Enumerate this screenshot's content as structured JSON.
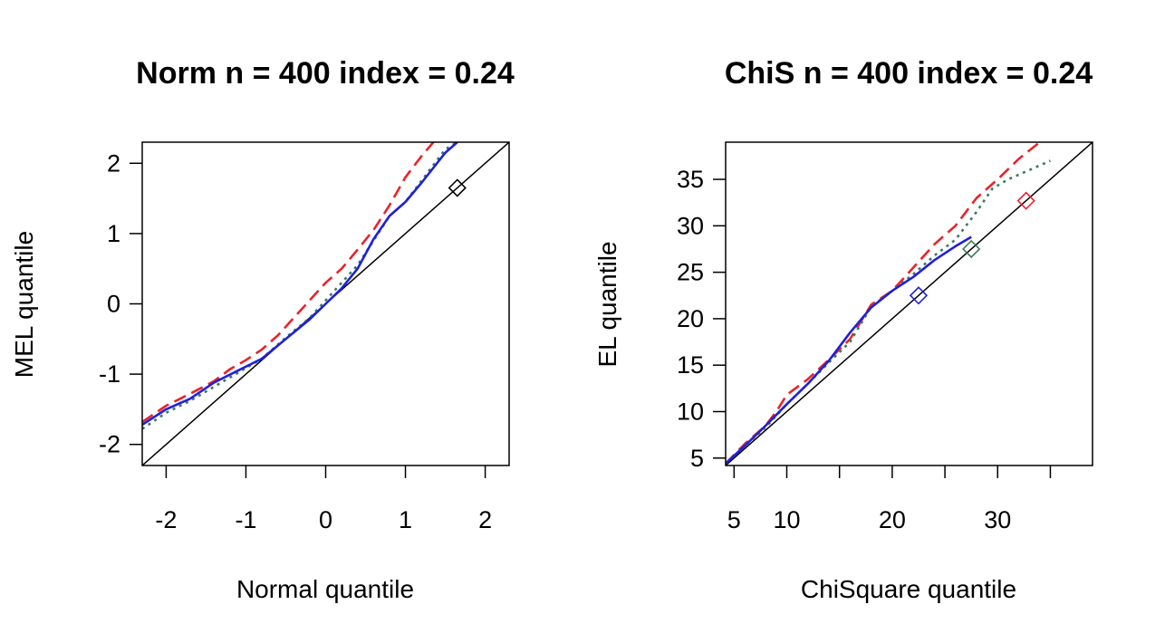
{
  "chart_data": [
    {
      "type": "line",
      "title": "Norm n = 400 index = 0.24",
      "xlabel": "Normal quantile",
      "ylabel": "MEL quantile",
      "xlim": [
        -2.3,
        2.3
      ],
      "ylim": [
        -2.3,
        2.3
      ],
      "xticks": [
        -2,
        -1,
        0,
        1,
        2
      ],
      "yticks": [
        -2,
        -1,
        0,
        1,
        2
      ],
      "xtick_labels": [
        "-2",
        "-1",
        "0",
        "1",
        "2"
      ],
      "ytick_labels": [
        "-2",
        "-1",
        "0",
        "1",
        "2"
      ],
      "reference_line": "y = x",
      "series": [
        {
          "name": "red-dashed",
          "color": "#e8232b",
          "style": "dashed",
          "x": [
            -2.3,
            -2.0,
            -1.7,
            -1.4,
            -1.2,
            -1.0,
            -0.8,
            -0.6,
            -0.4,
            -0.2,
            0.0,
            0.2,
            0.4,
            0.6,
            0.8,
            1.0,
            1.2,
            1.35
          ],
          "y": [
            -1.68,
            -1.45,
            -1.28,
            -1.1,
            -0.93,
            -0.8,
            -0.65,
            -0.45,
            -0.2,
            0.05,
            0.3,
            0.5,
            0.77,
            1.05,
            1.4,
            1.8,
            2.1,
            2.3
          ]
        },
        {
          "name": "green-dotted",
          "color": "#3d7a5f",
          "style": "dotted",
          "x": [
            -2.3,
            -2.0,
            -1.7,
            -1.4,
            -1.1,
            -0.8,
            -0.5,
            -0.2,
            0.0,
            0.2,
            0.4,
            0.6,
            0.8,
            1.0,
            1.2,
            1.5,
            1.65
          ],
          "y": [
            -1.78,
            -1.55,
            -1.38,
            -1.18,
            -0.98,
            -0.78,
            -0.48,
            -0.2,
            0.05,
            0.3,
            0.55,
            0.9,
            1.25,
            1.45,
            1.75,
            2.2,
            2.3
          ]
        },
        {
          "name": "blue-solid",
          "color": "#1f1fe0",
          "style": "solid",
          "x": [
            -2.3,
            -2.0,
            -1.7,
            -1.4,
            -1.1,
            -0.8,
            -0.5,
            -0.2,
            0.0,
            0.2,
            0.4,
            0.6,
            0.8,
            1.0,
            1.2,
            1.5,
            1.65
          ],
          "y": [
            -1.72,
            -1.5,
            -1.35,
            -1.12,
            -0.95,
            -0.78,
            -0.5,
            -0.22,
            0.0,
            0.22,
            0.5,
            0.92,
            1.25,
            1.45,
            1.72,
            2.15,
            2.3
          ]
        }
      ],
      "markers": [
        {
          "x": 1.65,
          "y": 1.65,
          "shape": "diamond",
          "color": "#000000"
        }
      ]
    },
    {
      "type": "line",
      "title": "ChiS n = 400 index = 0.24",
      "xlabel": "ChiSquare quantile",
      "ylabel": "EL quantile",
      "xlim": [
        4.2,
        39
      ],
      "ylim": [
        4.2,
        39
      ],
      "xticks": [
        5,
        10,
        15,
        20,
        25,
        30,
        35
      ],
      "yticks": [
        5,
        10,
        15,
        20,
        25,
        30,
        35
      ],
      "xtick_labels": [
        "5",
        "10",
        "",
        "20",
        "",
        "30",
        ""
      ],
      "ytick_labels": [
        "5",
        "10",
        "15",
        "20",
        "25",
        "30",
        "35"
      ],
      "reference_line": "y = x",
      "series": [
        {
          "name": "red-dashed",
          "color": "#e8232b",
          "style": "dashed",
          "x": [
            4.2,
            6,
            8,
            9,
            10,
            12,
            14,
            16,
            18,
            20,
            22,
            24,
            26,
            28,
            30,
            32,
            34
          ],
          "y": [
            4.4,
            6.5,
            8.5,
            10,
            11.8,
            13.5,
            15.6,
            17.8,
            21.5,
            23,
            25.5,
            28,
            30,
            33,
            35,
            37.2,
            39
          ]
        },
        {
          "name": "green-dotted",
          "color": "#3d7a5f",
          "style": "dotted",
          "x": [
            4.2,
            6,
            8,
            10,
            12,
            14,
            16,
            18,
            20,
            22,
            24,
            26,
            28,
            29.5,
            31,
            33,
            35
          ],
          "y": [
            4.4,
            6.3,
            8.3,
            10.8,
            13,
            15.3,
            17.5,
            21.3,
            23,
            24.8,
            26.8,
            28.5,
            31.5,
            34,
            35,
            36,
            37
          ]
        },
        {
          "name": "blue-solid",
          "color": "#1f1fe0",
          "style": "solid",
          "x": [
            4.2,
            6,
            8,
            10,
            12,
            14,
            16,
            18,
            20,
            22,
            24,
            26,
            27.5
          ],
          "y": [
            4.4,
            6.3,
            8.5,
            10.8,
            13,
            15.5,
            18.5,
            21.2,
            23,
            24.5,
            26.3,
            27.8,
            28.8
          ]
        }
      ],
      "markers": [
        {
          "x": 22.5,
          "y": 22.5,
          "shape": "diamond",
          "color": "#1f1fe0"
        },
        {
          "x": 27.5,
          "y": 27.5,
          "shape": "diamond",
          "color": "#3d7a5f"
        },
        {
          "x": 32.7,
          "y": 32.7,
          "shape": "diamond",
          "color": "#e8232b"
        }
      ]
    }
  ]
}
